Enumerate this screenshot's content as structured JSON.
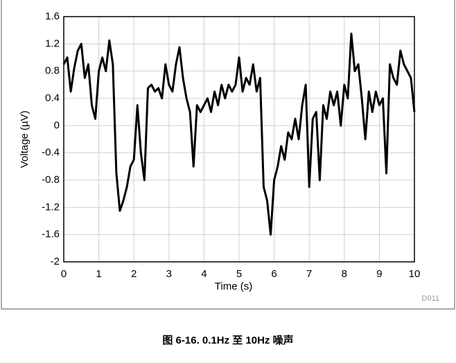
{
  "chart_data": {
    "type": "line",
    "xlabel": "Time (s)",
    "ylabel": "Voltage (µV)",
    "code": "D011",
    "caption": "图 6-16. 0.1Hz 至 10Hz 噪声",
    "x": [
      0,
      0.1,
      0.2,
      0.3,
      0.4,
      0.5,
      0.6,
      0.7,
      0.8,
      0.9,
      1,
      1.1,
      1.2,
      1.3,
      1.4,
      1.5,
      1.6,
      1.7,
      1.8,
      1.9,
      2,
      2.1,
      2.2,
      2.3,
      2.4,
      2.5,
      2.6,
      2.7,
      2.8,
      2.9,
      3,
      3.1,
      3.2,
      3.3,
      3.4,
      3.5,
      3.6,
      3.7,
      3.8,
      3.9,
      4,
      4.1,
      4.2,
      4.3,
      4.4,
      4.5,
      4.6,
      4.7,
      4.8,
      4.9,
      5,
      5.1,
      5.2,
      5.3,
      5.4,
      5.5,
      5.6,
      5.7,
      5.8,
      5.9,
      6,
      6.1,
      6.2,
      6.3,
      6.4,
      6.5,
      6.6,
      6.7,
      6.8,
      6.9,
      7,
      7.1,
      7.2,
      7.3,
      7.4,
      7.5,
      7.6,
      7.7,
      7.8,
      7.9,
      8,
      8.1,
      8.2,
      8.3,
      8.4,
      8.5,
      8.6,
      8.7,
      8.8,
      8.9,
      9,
      9.1,
      9.2,
      9.3,
      9.4,
      9.5,
      9.6,
      9.7,
      9.8,
      9.9,
      10
    ],
    "series": [
      {
        "color": "#000000",
        "values": [
          0.9,
          1.0,
          0.5,
          0.85,
          1.1,
          1.2,
          0.7,
          0.9,
          0.3,
          0.1,
          0.8,
          1.0,
          0.8,
          1.25,
          0.9,
          -0.7,
          -1.25,
          -1.1,
          -0.9,
          -0.6,
          -0.5,
          0.3,
          -0.4,
          -0.8,
          0.55,
          0.6,
          0.5,
          0.55,
          0.4,
          0.9,
          0.6,
          0.5,
          0.9,
          1.15,
          0.7,
          0.4,
          0.2,
          -0.6,
          0.3,
          0.2,
          0.3,
          0.4,
          0.2,
          0.5,
          0.3,
          0.6,
          0.4,
          0.6,
          0.5,
          0.6,
          1.0,
          0.5,
          0.7,
          0.6,
          0.9,
          0.5,
          0.7,
          -0.9,
          -1.1,
          -1.6,
          -0.8,
          -0.6,
          -0.3,
          -0.5,
          -0.1,
          -0.2,
          0.1,
          -0.2,
          0.3,
          0.6,
          -0.9,
          0.1,
          0.2,
          -0.8,
          0.3,
          0.1,
          0.5,
          0.3,
          0.5,
          0.0,
          0.6,
          0.4,
          1.35,
          0.8,
          0.9,
          0.4,
          -0.2,
          0.5,
          0.2,
          0.5,
          0.3,
          0.4,
          -0.7,
          0.9,
          0.7,
          0.6,
          1.1,
          0.9,
          0.8,
          0.7,
          0.2
        ]
      }
    ],
    "xlim": [
      0,
      10
    ],
    "xticks": [
      0,
      1,
      2,
      3,
      4,
      5,
      6,
      7,
      8,
      9,
      10
    ],
    "ylim": [
      -2,
      1.6
    ],
    "yticks": [
      -2,
      -1.6,
      -1.2,
      -0.8,
      -0.4,
      0,
      0.4,
      0.8,
      1.2,
      1.6
    ],
    "grid": true
  }
}
